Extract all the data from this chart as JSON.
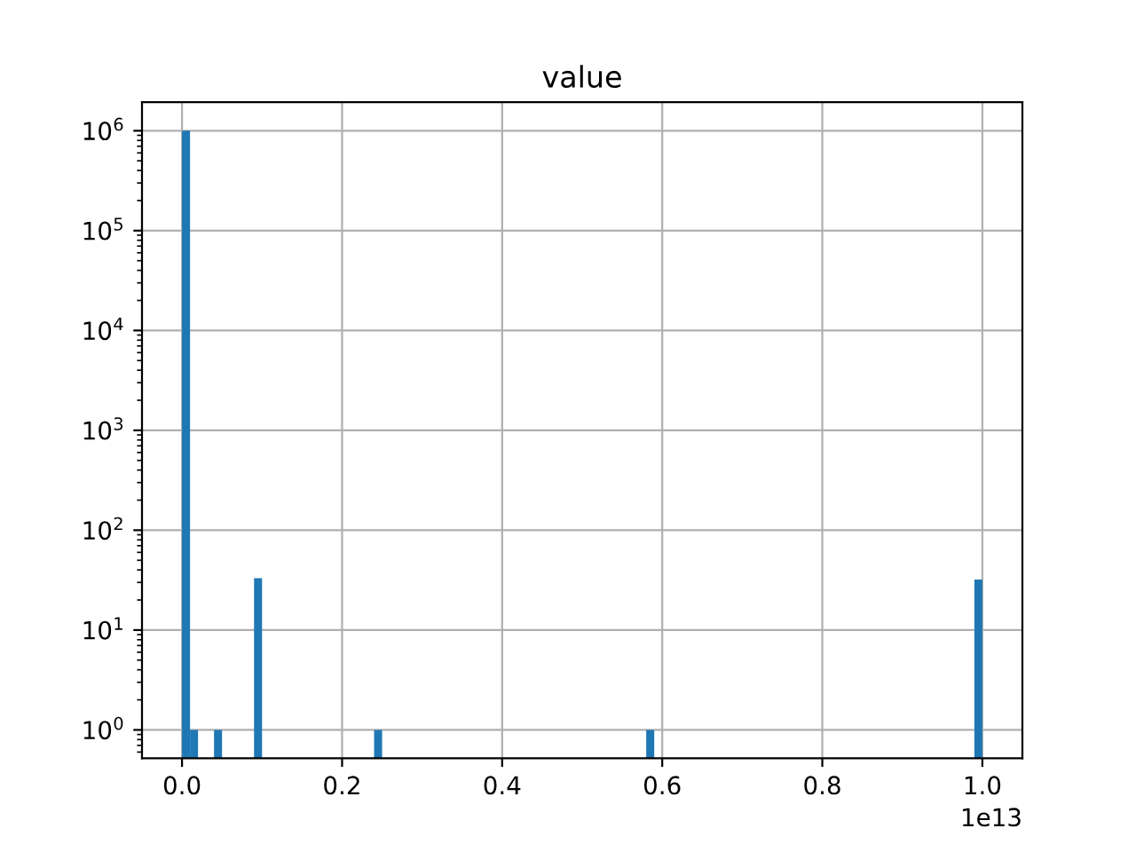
{
  "chart_data": {
    "type": "histogram",
    "title": "value",
    "bins": [
      0,
      0.01,
      0.02,
      0.03,
      0.04,
      0.05,
      0.06,
      0.07,
      0.08,
      0.09,
      0.1,
      0.11,
      0.12,
      0.13,
      0.14,
      0.15,
      0.16,
      0.17,
      0.18,
      0.19,
      0.2,
      0.21,
      0.22,
      0.23,
      0.24,
      0.25,
      0.26,
      0.27,
      0.28,
      0.29,
      0.3,
      0.31,
      0.32,
      0.33,
      0.34,
      0.35,
      0.36,
      0.37,
      0.38,
      0.39,
      0.4,
      0.41,
      0.42,
      0.43,
      0.44,
      0.45,
      0.46,
      0.47,
      0.48,
      0.49,
      0.5,
      0.51,
      0.52,
      0.53,
      0.54,
      0.55,
      0.56,
      0.57,
      0.58,
      0.59,
      0.6,
      0.61,
      0.62,
      0.63,
      0.64,
      0.65,
      0.66,
      0.67,
      0.68,
      0.69,
      0.7,
      0.71,
      0.72,
      0.73,
      0.74,
      0.75,
      0.76,
      0.77,
      0.78,
      0.79,
      0.8,
      0.81,
      0.82,
      0.83,
      0.84,
      0.85,
      0.86,
      0.87,
      0.88,
      0.89,
      0.9,
      0.91,
      0.92,
      0.93,
      0.94,
      0.95,
      0.96,
      0.97,
      0.98,
      0.99,
      1.0
    ],
    "values": [
      1000000,
      1,
      null,
      null,
      1,
      null,
      null,
      null,
      null,
      33,
      null,
      null,
      null,
      null,
      null,
      null,
      null,
      null,
      null,
      null,
      null,
      null,
      null,
      null,
      1,
      null,
      null,
      null,
      null,
      null,
      null,
      null,
      null,
      null,
      null,
      null,
      null,
      null,
      null,
      null,
      null,
      null,
      null,
      null,
      null,
      null,
      null,
      null,
      null,
      null,
      null,
      null,
      null,
      null,
      null,
      null,
      null,
      null,
      1,
      null,
      null,
      null,
      null,
      null,
      null,
      null,
      null,
      null,
      null,
      null,
      null,
      null,
      null,
      null,
      null,
      null,
      null,
      null,
      null,
      null,
      null,
      null,
      null,
      null,
      null,
      null,
      null,
      null,
      null,
      null,
      null,
      null,
      null,
      null,
      null,
      null,
      null,
      null,
      null,
      32
    ],
    "color": "#1f77b4",
    "log": "y",
    "grid": true,
    "xlim": [
      -0.05,
      1.05
    ],
    "xticks": [
      {
        "value": 0,
        "label": "0.0"
      },
      0.2,
      0.4,
      0.6,
      0.8,
      {
        "value": 1,
        "label": "1.0"
      }
    ],
    "ylim": [
      0.52,
      1930000
    ],
    "yticks": [
      {
        "value": 1,
        "label": "10$^{0}$"
      },
      {
        "value": 10,
        "label": "10$^{1}$"
      },
      {
        "value": 100,
        "label": "10$^{2}$"
      },
      {
        "value": 1000,
        "label": "10$^{3}$"
      },
      {
        "value": 10000,
        "label": "10$^{4}$"
      },
      {
        "value": 100000,
        "label": "10$^{5}$"
      },
      {
        "value": 1000000,
        "label": "10$^{6}$"
      }
    ],
    "annotations": [
      "1e13"
    ]
  }
}
